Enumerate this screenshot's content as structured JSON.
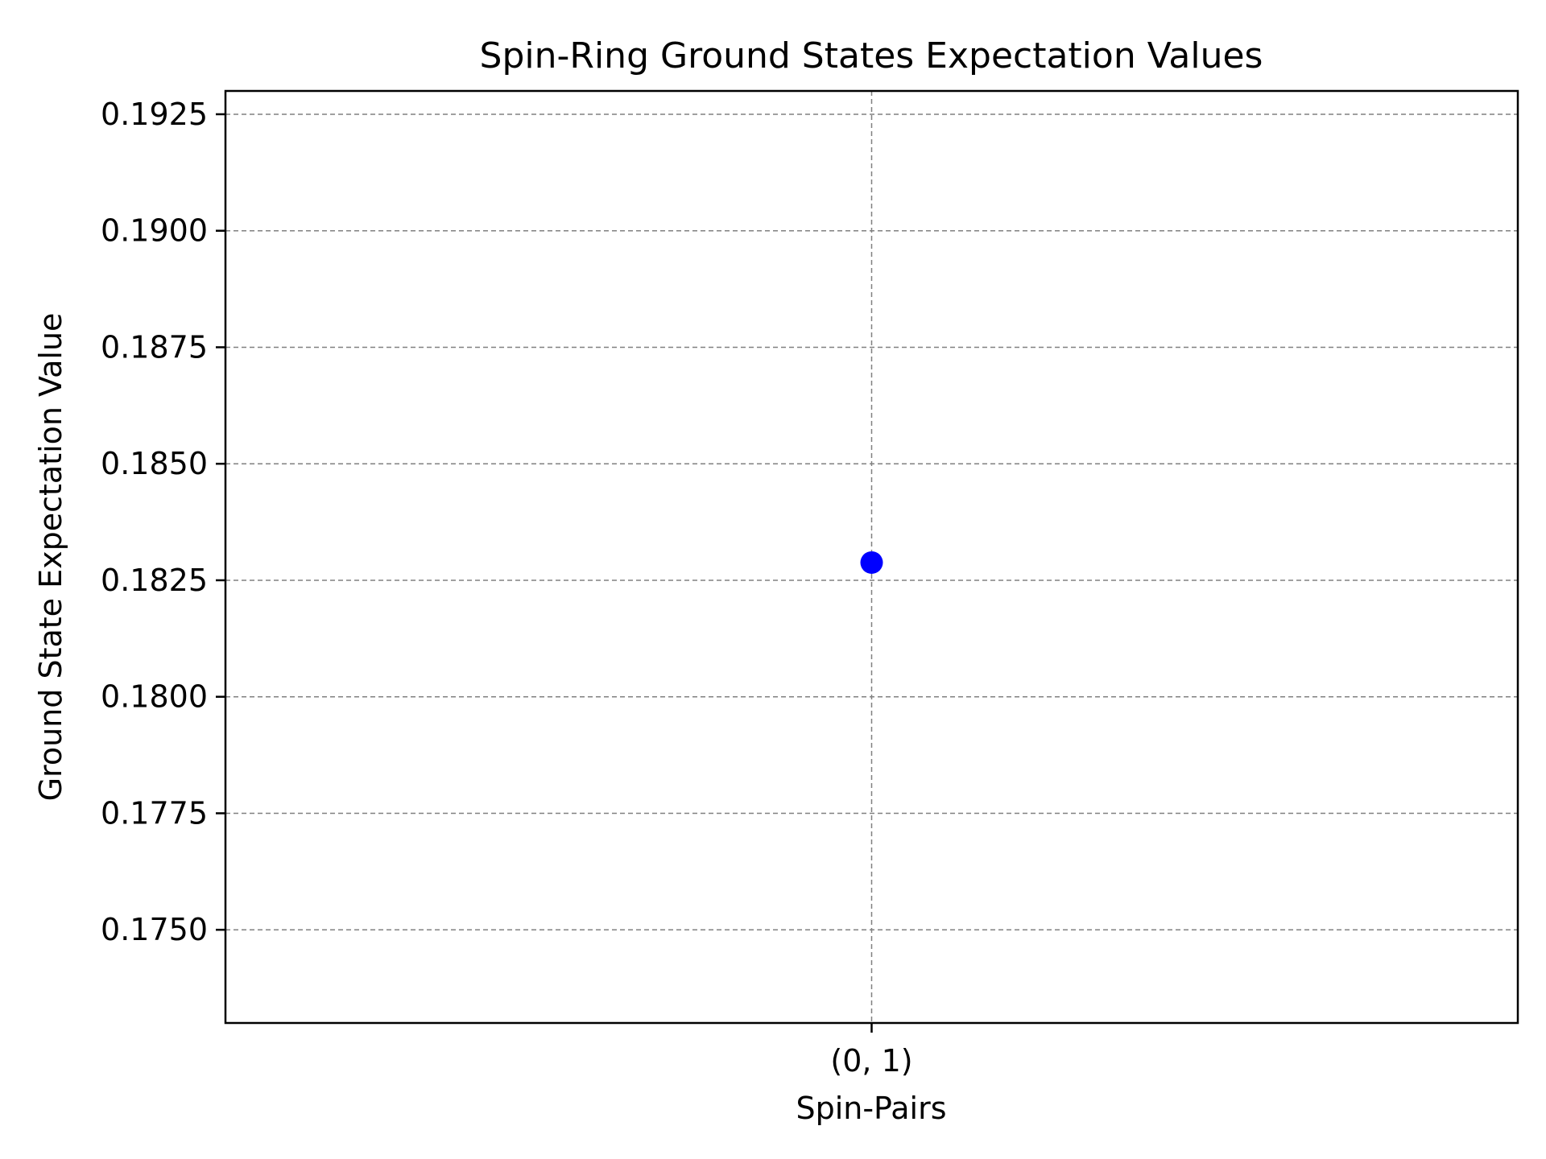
{
  "chart_data": {
    "type": "scatter",
    "title": "Spin-Ring Ground States Expectation Values",
    "xlabel": "Spin-Pairs",
    "ylabel": "Ground State Expectation Value",
    "categories": [
      "(0, 1)"
    ],
    "values": [
      0.18288
    ],
    "ylim": [
      0.173,
      0.193
    ],
    "yticks": [
      0.175,
      0.1775,
      0.18,
      0.1825,
      0.185,
      0.1875,
      0.19,
      0.1925
    ],
    "ytick_labels": [
      "0.1750",
      "0.1775",
      "0.1800",
      "0.1825",
      "0.1850",
      "0.1875",
      "0.1900",
      "0.1925"
    ],
    "grid": true,
    "marker_color": "#0000ff",
    "grid_color": "#808080"
  }
}
